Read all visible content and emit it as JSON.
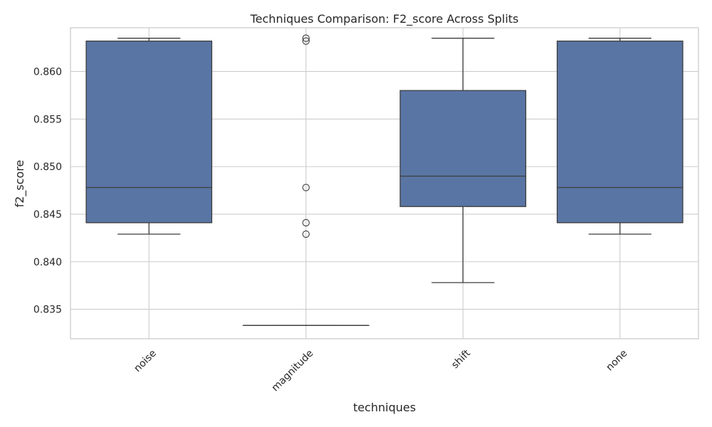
{
  "chart_data": {
    "type": "box",
    "title": "Techniques Comparison: F2_score Across Splits",
    "xlabel": "techniques",
    "ylabel": "f2_score",
    "ylim": [
      0.8319,
      0.8646
    ],
    "yticks": [
      0.835,
      0.84,
      0.845,
      0.85,
      0.855,
      0.86
    ],
    "ytick_labels": [
      "0.835",
      "0.840",
      "0.845",
      "0.850",
      "0.855",
      "0.860"
    ],
    "grid": true,
    "box_color": "#5975a4",
    "categories": [
      "noise",
      "magnitude",
      "shift",
      "none"
    ],
    "boxes": [
      {
        "category": "noise",
        "whisker_low": 0.8429,
        "q1": 0.8441,
        "median": 0.8478,
        "q3": 0.8632,
        "whisker_high": 0.8635,
        "outliers": []
      },
      {
        "category": "magnitude",
        "whisker_low": 0.8333,
        "q1": 0.8333,
        "median": 0.8333,
        "q3": 0.8333,
        "whisker_high": 0.8333,
        "outliers": [
          0.8635,
          0.8632,
          0.8478,
          0.8441,
          0.8429
        ]
      },
      {
        "category": "shift",
        "whisker_low": 0.8378,
        "q1": 0.8458,
        "median": 0.849,
        "q3": 0.858,
        "whisker_high": 0.8635,
        "outliers": []
      },
      {
        "category": "none",
        "whisker_low": 0.8429,
        "q1": 0.8441,
        "median": 0.8478,
        "q3": 0.8632,
        "whisker_high": 0.8635,
        "outliers": []
      }
    ]
  }
}
